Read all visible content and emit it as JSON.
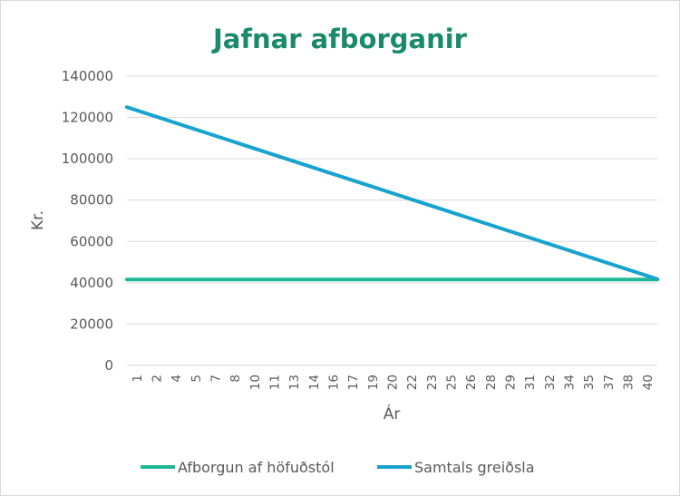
{
  "chart_data": {
    "type": "line",
    "title": "Jafnar afborganir",
    "xlabel": "Ár",
    "ylabel": "Kr.",
    "ylim": [
      0,
      140000
    ],
    "yticks": [
      0,
      20000,
      40000,
      60000,
      80000,
      100000,
      120000,
      140000
    ],
    "x": [
      1,
      40
    ],
    "x_tick_labels": [
      "1",
      "2",
      "4",
      "5",
      "7",
      "8",
      "10",
      "11",
      "13",
      "14",
      "16",
      "17",
      "19",
      "20",
      "22",
      "23",
      "25",
      "26",
      "28",
      "29",
      "31",
      "32",
      "34",
      "35",
      "37",
      "38",
      "40"
    ],
    "series": [
      {
        "name": "Afborgun af höfuðstól",
        "color": "#1db896",
        "values": [
          41600,
          41600
        ]
      },
      {
        "name": "Samtals greiðsla",
        "color": "#18a3cf",
        "values": [
          125000,
          41800
        ]
      }
    ],
    "grid": true,
    "legend_position": "bottom"
  }
}
